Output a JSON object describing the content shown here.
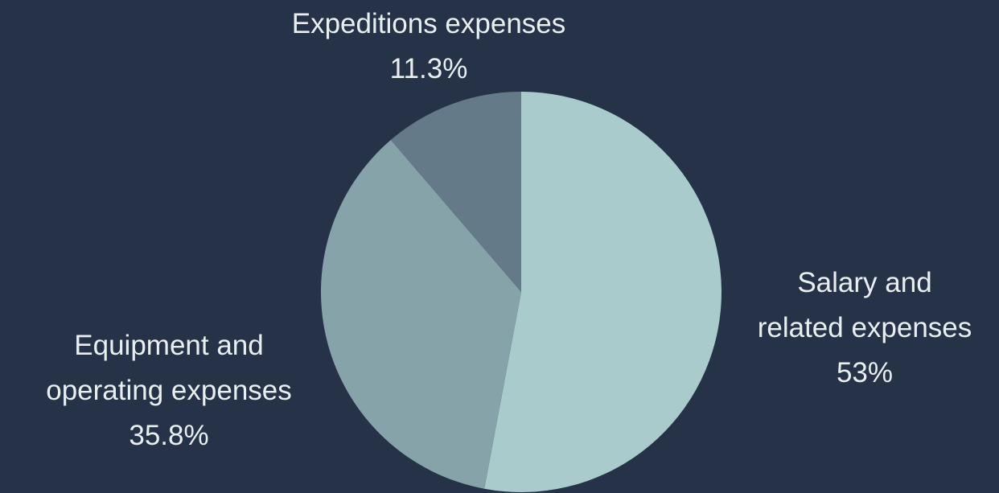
{
  "chart_data": {
    "type": "pie",
    "categories": [
      "Salary and related expenses",
      "Equipment and operating expenses",
      "Expeditions expenses"
    ],
    "values": [
      53,
      35.8,
      11.3
    ],
    "value_labels": [
      "53%",
      "35.8%",
      "11.3%"
    ],
    "colors": [
      "#a9cbcc",
      "#87a3aa",
      "#647a88"
    ]
  }
}
